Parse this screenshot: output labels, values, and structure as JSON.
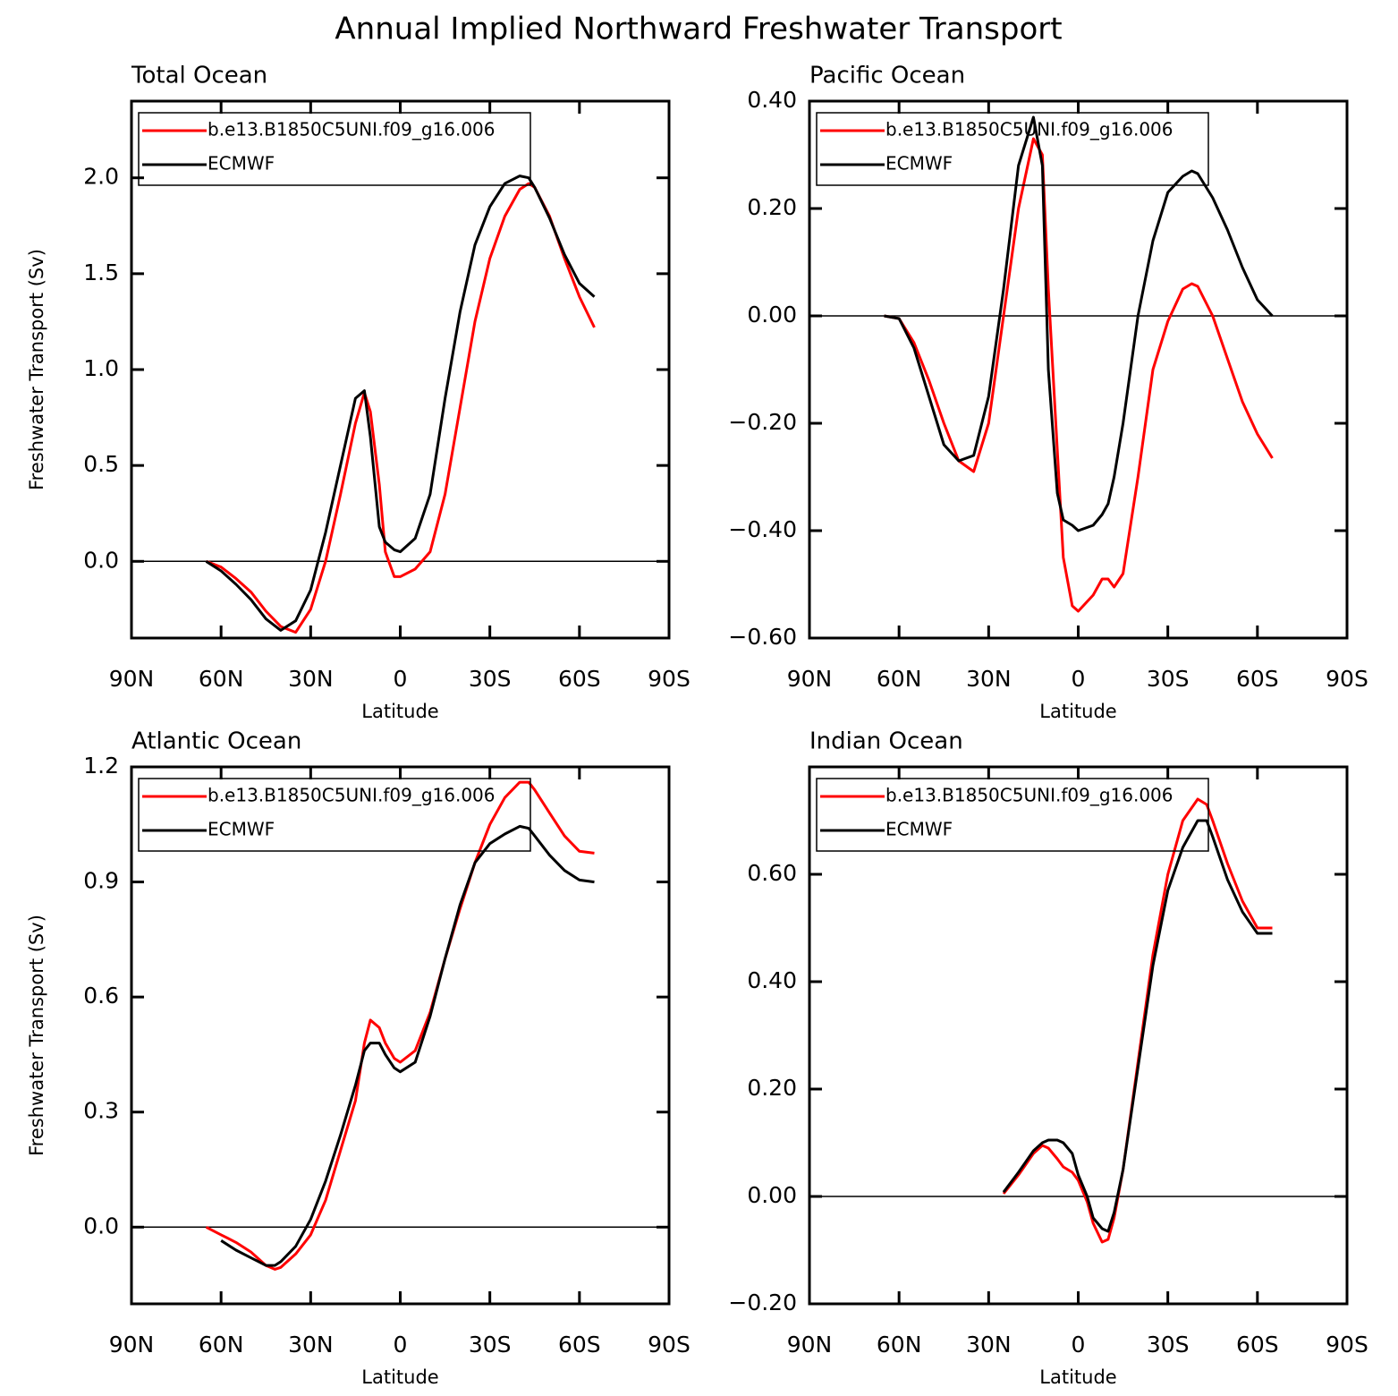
{
  "title": "Annual Implied Northward Freshwater Transport",
  "chart_data": [
    {
      "type": "line",
      "title": "Total Ocean",
      "xlabel": "Latitude",
      "ylabel": "Freshwater Transport (Sv)",
      "x": [
        65,
        60,
        55,
        50,
        45,
        40,
        35,
        30,
        25,
        20,
        15,
        12,
        10,
        7,
        5,
        2,
        0,
        -5,
        -10,
        -15,
        -20,
        -25,
        -30,
        -35,
        -40,
        -43,
        -45,
        -50,
        -55,
        -60,
        -65
      ],
      "series": [
        {
          "name": "b.e13.B1850C5UNI.f09_g16.006",
          "color": "#ff0000",
          "values": [
            0,
            -0.03,
            -0.09,
            -0.16,
            -0.26,
            -0.34,
            -0.37,
            -0.25,
            0,
            0.35,
            0.72,
            0.88,
            0.78,
            0.4,
            0.05,
            -0.08,
            -0.08,
            -0.04,
            0.05,
            0.35,
            0.8,
            1.25,
            1.58,
            1.8,
            1.94,
            1.97,
            1.95,
            1.8,
            1.58,
            1.38,
            1.22
          ]
        },
        {
          "name": "ECMWF",
          "color": "#000000",
          "values": [
            0,
            -0.05,
            -0.12,
            -0.2,
            -0.3,
            -0.36,
            -0.31,
            -0.15,
            0.15,
            0.5,
            0.85,
            0.89,
            0.65,
            0.18,
            0.1,
            0.06,
            0.05,
            0.12,
            0.35,
            0.85,
            1.3,
            1.65,
            1.85,
            1.97,
            2.01,
            2.0,
            1.95,
            1.79,
            1.6,
            1.45,
            1.38
          ]
        }
      ],
      "xlim": [
        90,
        -90
      ],
      "xticks": [
        {
          "value": 90,
          "label": "90N"
        },
        {
          "value": 60,
          "label": "60N"
        },
        {
          "value": 30,
          "label": "30N"
        },
        0,
        {
          "value": -30,
          "label": "30S"
        },
        {
          "value": -60,
          "label": "60S"
        },
        {
          "value": -90,
          "label": "90S"
        }
      ],
      "ylim": [
        -0.4,
        2.4
      ],
      "yticks": [
        {
          "value": 0,
          "label": "0.0"
        },
        0.5,
        {
          "value": 1,
          "label": "1.0"
        },
        1.5,
        {
          "value": 2,
          "label": "2.0"
        }
      ]
    },
    {
      "type": "line",
      "title": "Pacific Ocean",
      "xlabel": "Latitude",
      "x": [
        65,
        60,
        55,
        50,
        45,
        40,
        35,
        30,
        25,
        20,
        15,
        12,
        10,
        7,
        5,
        2,
        0,
        -5,
        -8,
        -10,
        -12,
        -15,
        -20,
        -25,
        -30,
        -35,
        -38,
        -40,
        -45,
        -50,
        -55,
        -60,
        -65
      ],
      "series": [
        {
          "name": "b.e13.B1850C5UNI.f09_g16.006",
          "color": "#ff0000",
          "values": [
            0,
            -0.005,
            -0.05,
            -0.12,
            -0.2,
            -0.27,
            -0.29,
            -0.2,
            0,
            0.2,
            0.33,
            0.3,
            0.05,
            -0.25,
            -0.45,
            -0.54,
            -0.55,
            -0.52,
            -0.49,
            -0.49,
            -0.505,
            -0.48,
            -0.3,
            -0.1,
            -0.01,
            0.05,
            0.06,
            0.055,
            0,
            -0.08,
            -0.16,
            -0.22,
            -0.265
          ]
        },
        {
          "name": "ECMWF",
          "color": "#000000",
          "values": [
            0,
            -0.005,
            -0.06,
            -0.15,
            -0.24,
            -0.27,
            -0.26,
            -0.15,
            0.05,
            0.28,
            0.37,
            0.28,
            -0.1,
            -0.33,
            -0.38,
            -0.39,
            -0.4,
            -0.39,
            -0.37,
            -0.35,
            -0.3,
            -0.2,
            0,
            0.14,
            0.23,
            0.26,
            0.27,
            0.265,
            0.22,
            0.16,
            0.09,
            0.03,
            0
          ]
        }
      ],
      "xlim": [
        90,
        -90
      ],
      "xticks": [
        {
          "value": 90,
          "label": "90N"
        },
        {
          "value": 60,
          "label": "60N"
        },
        {
          "value": 30,
          "label": "30N"
        },
        0,
        {
          "value": -30,
          "label": "30S"
        },
        {
          "value": -60,
          "label": "60S"
        },
        {
          "value": -90,
          "label": "90S"
        }
      ],
      "ylim": [
        -0.6,
        0.4
      ],
      "yticks": [
        {
          "value": -0.6,
          "label": "−0.60"
        },
        {
          "value": -0.4,
          "label": "−0.40"
        },
        {
          "value": -0.2,
          "label": "−0.20"
        },
        {
          "value": 0,
          "label": "0.00"
        },
        {
          "value": 0.2,
          "label": "0.20"
        },
        {
          "value": 0.4,
          "label": "0.40"
        }
      ]
    },
    {
      "type": "line",
      "title": "Atlantic Ocean",
      "xlabel": "Latitude",
      "ylabel": "Freshwater Transport (Sv)",
      "x": [
        65,
        60,
        55,
        50,
        45,
        42,
        40,
        35,
        30,
        25,
        20,
        15,
        12,
        10,
        7,
        5,
        2,
        0,
        -5,
        -10,
        -15,
        -20,
        -25,
        -30,
        -35,
        -40,
        -43,
        -45,
        -50,
        -55,
        -60,
        -65
      ],
      "series": [
        {
          "name": "b.e13.B1850C5UNI.f09_g16.006",
          "color": "#ff0000",
          "values": [
            0,
            -0.02,
            -0.04,
            -0.065,
            -0.1,
            -0.11,
            -0.105,
            -0.07,
            -0.02,
            0.07,
            0.2,
            0.33,
            0.48,
            0.54,
            0.52,
            0.48,
            0.44,
            0.43,
            0.46,
            0.56,
            0.7,
            0.83,
            0.95,
            1.05,
            1.12,
            1.16,
            1.16,
            1.14,
            1.08,
            1.02,
            0.98,
            0.975
          ]
        },
        {
          "name": "ECMWF",
          "color": "#000000",
          "values": [
            null,
            -0.035,
            -0.06,
            -0.08,
            -0.1,
            -0.1,
            -0.09,
            -0.05,
            0.02,
            0.12,
            0.24,
            0.37,
            0.46,
            0.48,
            0.48,
            0.45,
            0.415,
            0.405,
            0.43,
            0.55,
            0.7,
            0.84,
            0.95,
            1.0,
            1.025,
            1.045,
            1.04,
            1.02,
            0.97,
            0.93,
            0.905,
            0.9
          ]
        }
      ],
      "xlim": [
        90,
        -90
      ],
      "xticks": [
        {
          "value": 90,
          "label": "90N"
        },
        {
          "value": 60,
          "label": "60N"
        },
        {
          "value": 30,
          "label": "30N"
        },
        0,
        {
          "value": -30,
          "label": "30S"
        },
        {
          "value": -60,
          "label": "60S"
        },
        {
          "value": -90,
          "label": "90S"
        }
      ],
      "ylim": [
        -0.2,
        1.2
      ],
      "yticks": [
        {
          "value": 0,
          "label": "0.0"
        },
        0.3,
        0.6,
        0.9,
        1.2
      ]
    },
    {
      "type": "line",
      "title": "Indian Ocean",
      "xlabel": "Latitude",
      "x": [
        25,
        20,
        15,
        12,
        10,
        7,
        5,
        2,
        0,
        -3,
        -5,
        -8,
        -10,
        -12,
        -15,
        -20,
        -25,
        -30,
        -35,
        -40,
        -43,
        -45,
        -50,
        -55,
        -60,
        -65
      ],
      "series": [
        {
          "name": "b.e13.B1850C5UNI.f09_g16.006",
          "color": "#ff0000",
          "values": [
            0.005,
            0.04,
            0.08,
            0.095,
            0.09,
            0.07,
            0.055,
            0.045,
            0.03,
            -0.01,
            -0.05,
            -0.085,
            -0.08,
            -0.04,
            0.05,
            0.25,
            0.45,
            0.6,
            0.7,
            0.74,
            0.73,
            0.7,
            0.62,
            0.55,
            0.5,
            0.5
          ]
        },
        {
          "name": "ECMWF",
          "color": "#000000",
          "values": [
            0.008,
            0.045,
            0.085,
            0.1,
            0.105,
            0.105,
            0.1,
            0.08,
            0.04,
            0,
            -0.04,
            -0.06,
            -0.065,
            -0.03,
            0.05,
            0.24,
            0.43,
            0.57,
            0.65,
            0.7,
            0.7,
            0.67,
            0.59,
            0.53,
            0.49,
            0.49
          ]
        }
      ],
      "xlim": [
        90,
        -90
      ],
      "xticks": [
        {
          "value": 90,
          "label": "90N"
        },
        {
          "value": 60,
          "label": "60N"
        },
        {
          "value": 30,
          "label": "30N"
        },
        0,
        {
          "value": -30,
          "label": "30S"
        },
        {
          "value": -60,
          "label": "60S"
        },
        {
          "value": -90,
          "label": "90S"
        }
      ],
      "ylim": [
        -0.2,
        0.8
      ],
      "yticks": [
        {
          "value": -0.2,
          "label": "−0.20"
        },
        {
          "value": 0,
          "label": "0.00"
        },
        {
          "value": 0.2,
          "label": "0.20"
        },
        {
          "value": 0.4,
          "label": "0.40"
        },
        {
          "value": 0.6,
          "label": "0.60"
        }
      ]
    }
  ]
}
